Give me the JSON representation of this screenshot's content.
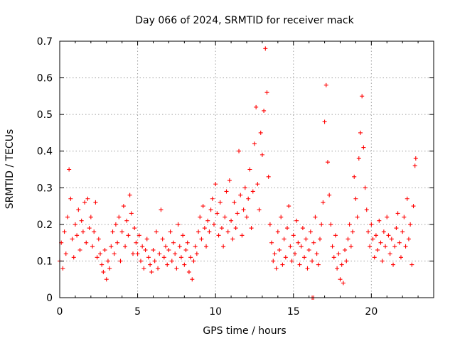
{
  "chart_data": {
    "type": "scatter",
    "title": "Day 066 of 2024, SRMTID for receiver mack",
    "xlabel": "GPS time / hours",
    "ylabel": "SRMTID / TECUs",
    "xlim": [
      0,
      24
    ],
    "ylim": [
      0,
      0.7
    ],
    "xticks": [
      0,
      5,
      10,
      15,
      20
    ],
    "xtick_labels": [
      "0",
      "5",
      "10",
      "15",
      "20"
    ],
    "yticks": [
      0,
      0.1,
      0.2,
      0.3,
      0.4,
      0.5,
      0.6,
      0.7
    ],
    "ytick_labels": [
      "0",
      "0.1",
      "0.2",
      "0.3",
      "0.4",
      "0.5",
      "0.6",
      "0.7"
    ],
    "grid": true,
    "marker": "+",
    "color": "#ff0000",
    "series": [
      {
        "name": "SRMTID",
        "points": [
          [
            0.0,
            0.1
          ],
          [
            0.1,
            0.15
          ],
          [
            0.2,
            0.08
          ],
          [
            0.3,
            0.18
          ],
          [
            0.4,
            0.12
          ],
          [
            0.5,
            0.22
          ],
          [
            0.6,
            0.35
          ],
          [
            0.7,
            0.27
          ],
          [
            0.8,
            0.16
          ],
          [
            0.9,
            0.11
          ],
          [
            1.0,
            0.2
          ],
          [
            1.1,
            0.17
          ],
          [
            1.2,
            0.24
          ],
          [
            1.3,
            0.13
          ],
          [
            1.4,
            0.21
          ],
          [
            1.5,
            0.18
          ],
          [
            1.6,
            0.26
          ],
          [
            1.7,
            0.15
          ],
          [
            1.8,
            0.27
          ],
          [
            1.9,
            0.19
          ],
          [
            2.0,
            0.22
          ],
          [
            2.1,
            0.14
          ],
          [
            2.2,
            0.18
          ],
          [
            2.3,
            0.26
          ],
          [
            2.4,
            0.11
          ],
          [
            2.5,
            0.16
          ],
          [
            2.6,
            0.12
          ],
          [
            2.7,
            0.09
          ],
          [
            2.8,
            0.07
          ],
          [
            2.9,
            0.13
          ],
          [
            3.0,
            0.05
          ],
          [
            3.1,
            0.1
          ],
          [
            3.2,
            0.08
          ],
          [
            3.3,
            0.14
          ],
          [
            3.4,
            0.18
          ],
          [
            3.5,
            0.12
          ],
          [
            3.6,
            0.2
          ],
          [
            3.7,
            0.15
          ],
          [
            3.8,
            0.22
          ],
          [
            3.9,
            0.1
          ],
          [
            4.0,
            0.18
          ],
          [
            4.1,
            0.25
          ],
          [
            4.2,
            0.14
          ],
          [
            4.3,
            0.21
          ],
          [
            4.4,
            0.17
          ],
          [
            4.5,
            0.28
          ],
          [
            4.6,
            0.23
          ],
          [
            4.7,
            0.12
          ],
          [
            4.8,
            0.19
          ],
          [
            4.9,
            0.15
          ],
          [
            5.0,
            0.12
          ],
          [
            5.1,
            0.17
          ],
          [
            5.2,
            0.1
          ],
          [
            5.3,
            0.14
          ],
          [
            5.4,
            0.08
          ],
          [
            5.5,
            0.13
          ],
          [
            5.6,
            0.16
          ],
          [
            5.7,
            0.11
          ],
          [
            5.8,
            0.09
          ],
          [
            5.9,
            0.07
          ],
          [
            6.0,
            0.13
          ],
          [
            6.1,
            0.1
          ],
          [
            6.2,
            0.18
          ],
          [
            6.3,
            0.08
          ],
          [
            6.4,
            0.12
          ],
          [
            6.5,
            0.24
          ],
          [
            6.6,
            0.16
          ],
          [
            6.7,
            0.11
          ],
          [
            6.8,
            0.14
          ],
          [
            6.9,
            0.09
          ],
          [
            7.0,
            0.13
          ],
          [
            7.1,
            0.18
          ],
          [
            7.2,
            0.1
          ],
          [
            7.3,
            0.15
          ],
          [
            7.4,
            0.12
          ],
          [
            7.5,
            0.08
          ],
          [
            7.6,
            0.2
          ],
          [
            7.7,
            0.14
          ],
          [
            7.8,
            0.11
          ],
          [
            7.9,
            0.17
          ],
          [
            8.0,
            0.09
          ],
          [
            8.1,
            0.13
          ],
          [
            8.2,
            0.15
          ],
          [
            8.3,
            0.07
          ],
          [
            8.4,
            0.11
          ],
          [
            8.5,
            0.05
          ],
          [
            8.6,
            0.1
          ],
          [
            8.7,
            0.14
          ],
          [
            8.8,
            0.12
          ],
          [
            8.9,
            0.18
          ],
          [
            9.0,
            0.22
          ],
          [
            9.1,
            0.16
          ],
          [
            9.2,
            0.25
          ],
          [
            9.3,
            0.19
          ],
          [
            9.4,
            0.14
          ],
          [
            9.5,
            0.21
          ],
          [
            9.6,
            0.18
          ],
          [
            9.7,
            0.24
          ],
          [
            9.8,
            0.27
          ],
          [
            9.9,
            0.2
          ],
          [
            10.0,
            0.31
          ],
          [
            10.1,
            0.23
          ],
          [
            10.2,
            0.17
          ],
          [
            10.3,
            0.26
          ],
          [
            10.4,
            0.19
          ],
          [
            10.5,
            0.14
          ],
          [
            10.6,
            0.22
          ],
          [
            10.7,
            0.29
          ],
          [
            10.8,
            0.18
          ],
          [
            10.9,
            0.32
          ],
          [
            11.0,
            0.21
          ],
          [
            11.1,
            0.16
          ],
          [
            11.2,
            0.26
          ],
          [
            11.3,
            0.19
          ],
          [
            11.4,
            0.23
          ],
          [
            11.5,
            0.4
          ],
          [
            11.6,
            0.28
          ],
          [
            11.7,
            0.17
          ],
          [
            11.8,
            0.24
          ],
          [
            11.9,
            0.3
          ],
          [
            12.0,
            0.22
          ],
          [
            12.1,
            0.27
          ],
          [
            12.2,
            0.35
          ],
          [
            12.3,
            0.19
          ],
          [
            12.4,
            0.29
          ],
          [
            12.5,
            0.42
          ],
          [
            12.6,
            0.52
          ],
          [
            12.7,
            0.31
          ],
          [
            12.8,
            0.24
          ],
          [
            12.9,
            0.45
          ],
          [
            13.0,
            0.39
          ],
          [
            13.1,
            0.51
          ],
          [
            13.2,
            0.68
          ],
          [
            13.3,
            0.56
          ],
          [
            13.4,
            0.33
          ],
          [
            13.5,
            0.2
          ],
          [
            13.6,
            0.15
          ],
          [
            13.7,
            0.1
          ],
          [
            13.8,
            0.12
          ],
          [
            13.9,
            0.08
          ],
          [
            14.0,
            0.18
          ],
          [
            14.1,
            0.13
          ],
          [
            14.2,
            0.22
          ],
          [
            14.3,
            0.09
          ],
          [
            14.4,
            0.16
          ],
          [
            14.5,
            0.11
          ],
          [
            14.6,
            0.19
          ],
          [
            14.7,
            0.25
          ],
          [
            14.8,
            0.14
          ],
          [
            14.9,
            0.1
          ],
          [
            15.0,
            0.17
          ],
          [
            15.1,
            0.12
          ],
          [
            15.2,
            0.21
          ],
          [
            15.3,
            0.15
          ],
          [
            15.4,
            0.09
          ],
          [
            15.5,
            0.14
          ],
          [
            15.6,
            0.19
          ],
          [
            15.7,
            0.11
          ],
          [
            15.8,
            0.16
          ],
          [
            15.9,
            0.08
          ],
          [
            16.0,
            0.13
          ],
          [
            16.1,
            0.18
          ],
          [
            16.2,
            0.1
          ],
          [
            16.3,
            0.15
          ],
          [
            16.4,
            0.22
          ],
          [
            16.5,
            0.12
          ],
          [
            16.6,
            0.09
          ],
          [
            16.7,
            0.16
          ],
          [
            16.8,
            0.2
          ],
          [
            16.9,
            0.26
          ],
          [
            17.0,
            0.48
          ],
          [
            17.1,
            0.58
          ],
          [
            17.2,
            0.37
          ],
          [
            17.3,
            0.28
          ],
          [
            17.4,
            0.2
          ],
          [
            17.5,
            0.14
          ],
          [
            17.6,
            0.11
          ],
          [
            17.7,
            0.17
          ],
          [
            17.8,
            0.08
          ],
          [
            17.9,
            0.12
          ],
          [
            18.0,
            0.05
          ],
          [
            18.1,
            0.09
          ],
          [
            18.2,
            0.04
          ],
          [
            18.3,
            0.13
          ],
          [
            18.4,
            0.1
          ],
          [
            18.5,
            0.16
          ],
          [
            18.6,
            0.2
          ],
          [
            18.7,
            0.14
          ],
          [
            18.8,
            0.18
          ],
          [
            18.9,
            0.33
          ],
          [
            19.0,
            0.27
          ],
          [
            19.1,
            0.22
          ],
          [
            19.2,
            0.38
          ],
          [
            19.3,
            0.45
          ],
          [
            19.4,
            0.55
          ],
          [
            19.5,
            0.41
          ],
          [
            19.6,
            0.3
          ],
          [
            19.7,
            0.24
          ],
          [
            19.8,
            0.18
          ],
          [
            19.9,
            0.14
          ],
          [
            20.0,
            0.2
          ],
          [
            20.1,
            0.16
          ],
          [
            20.2,
            0.11
          ],
          [
            20.3,
            0.17
          ],
          [
            20.4,
            0.13
          ],
          [
            20.5,
            0.21
          ],
          [
            20.6,
            0.15
          ],
          [
            20.7,
            0.1
          ],
          [
            20.8,
            0.18
          ],
          [
            20.9,
            0.14
          ],
          [
            21.0,
            0.22
          ],
          [
            21.1,
            0.17
          ],
          [
            21.2,
            0.12
          ],
          [
            21.3,
            0.16
          ],
          [
            21.4,
            0.09
          ],
          [
            21.5,
            0.14
          ],
          [
            21.6,
            0.19
          ],
          [
            21.7,
            0.23
          ],
          [
            21.8,
            0.15
          ],
          [
            21.9,
            0.11
          ],
          [
            22.0,
            0.18
          ],
          [
            22.1,
            0.22
          ],
          [
            22.2,
            0.14
          ],
          [
            22.3,
            0.27
          ],
          [
            22.4,
            0.16
          ],
          [
            22.5,
            0.2
          ],
          [
            22.6,
            0.09
          ],
          [
            22.7,
            0.25
          ],
          [
            22.8,
            0.36
          ],
          [
            22.85,
            0.38
          ],
          [
            16.2,
            0.0
          ],
          [
            16.3,
            0.0
          ]
        ]
      }
    ]
  }
}
